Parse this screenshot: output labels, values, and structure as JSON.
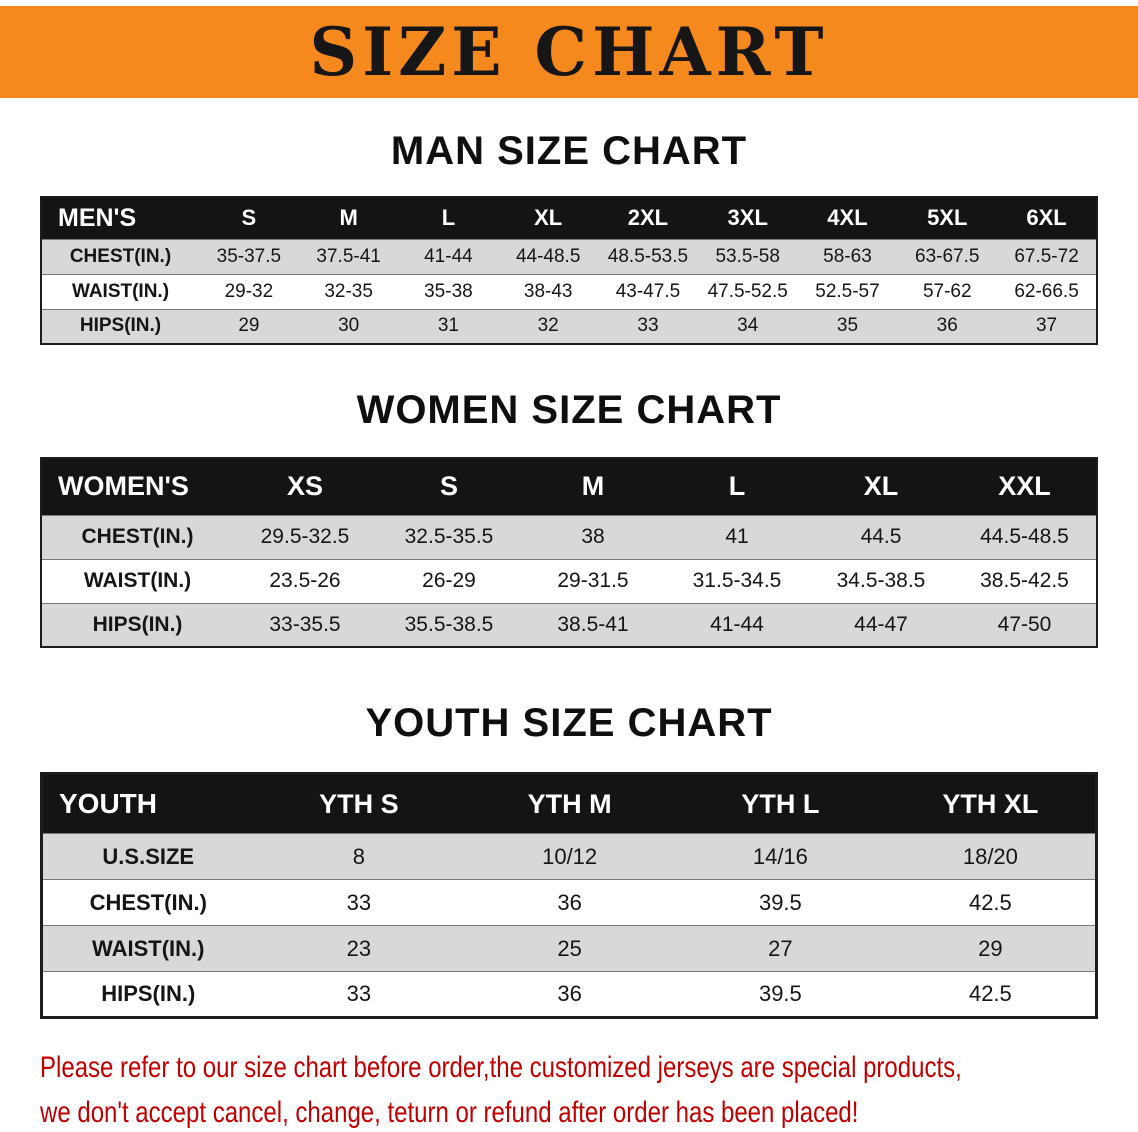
{
  "banner": {
    "title": "SIZE CHART",
    "bg_color": "#F6891E"
  },
  "sections": [
    {
      "heading": "MAN SIZE CHART",
      "table": {
        "header": [
          "MEN'S",
          "S",
          "M",
          "L",
          "XL",
          "2XL",
          "3XL",
          "4XL",
          "5XL",
          "6XL"
        ],
        "rows": [
          [
            "CHEST(IN.)",
            "35-37.5",
            "37.5-41",
            "41-44",
            "44-48.5",
            "48.5-53.5",
            "53.5-58",
            "58-63",
            "63-67.5",
            "67.5-72"
          ],
          [
            "WAIST(IN.)",
            "29-32",
            "32-35",
            "35-38",
            "38-43",
            "43-47.5",
            "47.5-52.5",
            "52.5-57",
            "57-62",
            "62-66.5"
          ],
          [
            "HIPS(IN.)",
            "29",
            "30",
            "31",
            "32",
            "33",
            "34",
            "35",
            "36",
            "37"
          ]
        ]
      }
    },
    {
      "heading": "WOMEN SIZE CHART",
      "table": {
        "header": [
          "WOMEN'S",
          "XS",
          "S",
          "M",
          "L",
          "XL",
          "XXL"
        ],
        "rows": [
          [
            "CHEST(IN.)",
            "29.5-32.5",
            "32.5-35.5",
            "38",
            "41",
            "44.5",
            "44.5-48.5"
          ],
          [
            "WAIST(IN.)",
            "23.5-26",
            "26-29",
            "29-31.5",
            "31.5-34.5",
            "34.5-38.5",
            "38.5-42.5"
          ],
          [
            "HIPS(IN.)",
            "33-35.5",
            "35.5-38.5",
            "38.5-41",
            "41-44",
            "44-47",
            "47-50"
          ]
        ]
      }
    },
    {
      "heading": "YOUTH SIZE CHART",
      "table": {
        "header": [
          "YOUTH",
          "YTH S",
          "YTH M",
          "YTH L",
          "YTH XL"
        ],
        "rows": [
          [
            "U.S.SIZE",
            "8",
            "10/12",
            "14/16",
            "18/20"
          ],
          [
            "CHEST(IN.)",
            "33",
            "36",
            "39.5",
            "42.5"
          ],
          [
            "WAIST(IN.)",
            "23",
            "25",
            "27",
            "29"
          ],
          [
            "HIPS(IN.)",
            "33",
            "36",
            "39.5",
            "42.5"
          ]
        ]
      }
    }
  ],
  "footer": {
    "lines": [
      "Please refer to our size chart before order,the customized jerseys are special products,",
      "we don't accept cancel, change, teturn or refund after order has been placed!"
    ],
    "text_color": "#c00000"
  }
}
